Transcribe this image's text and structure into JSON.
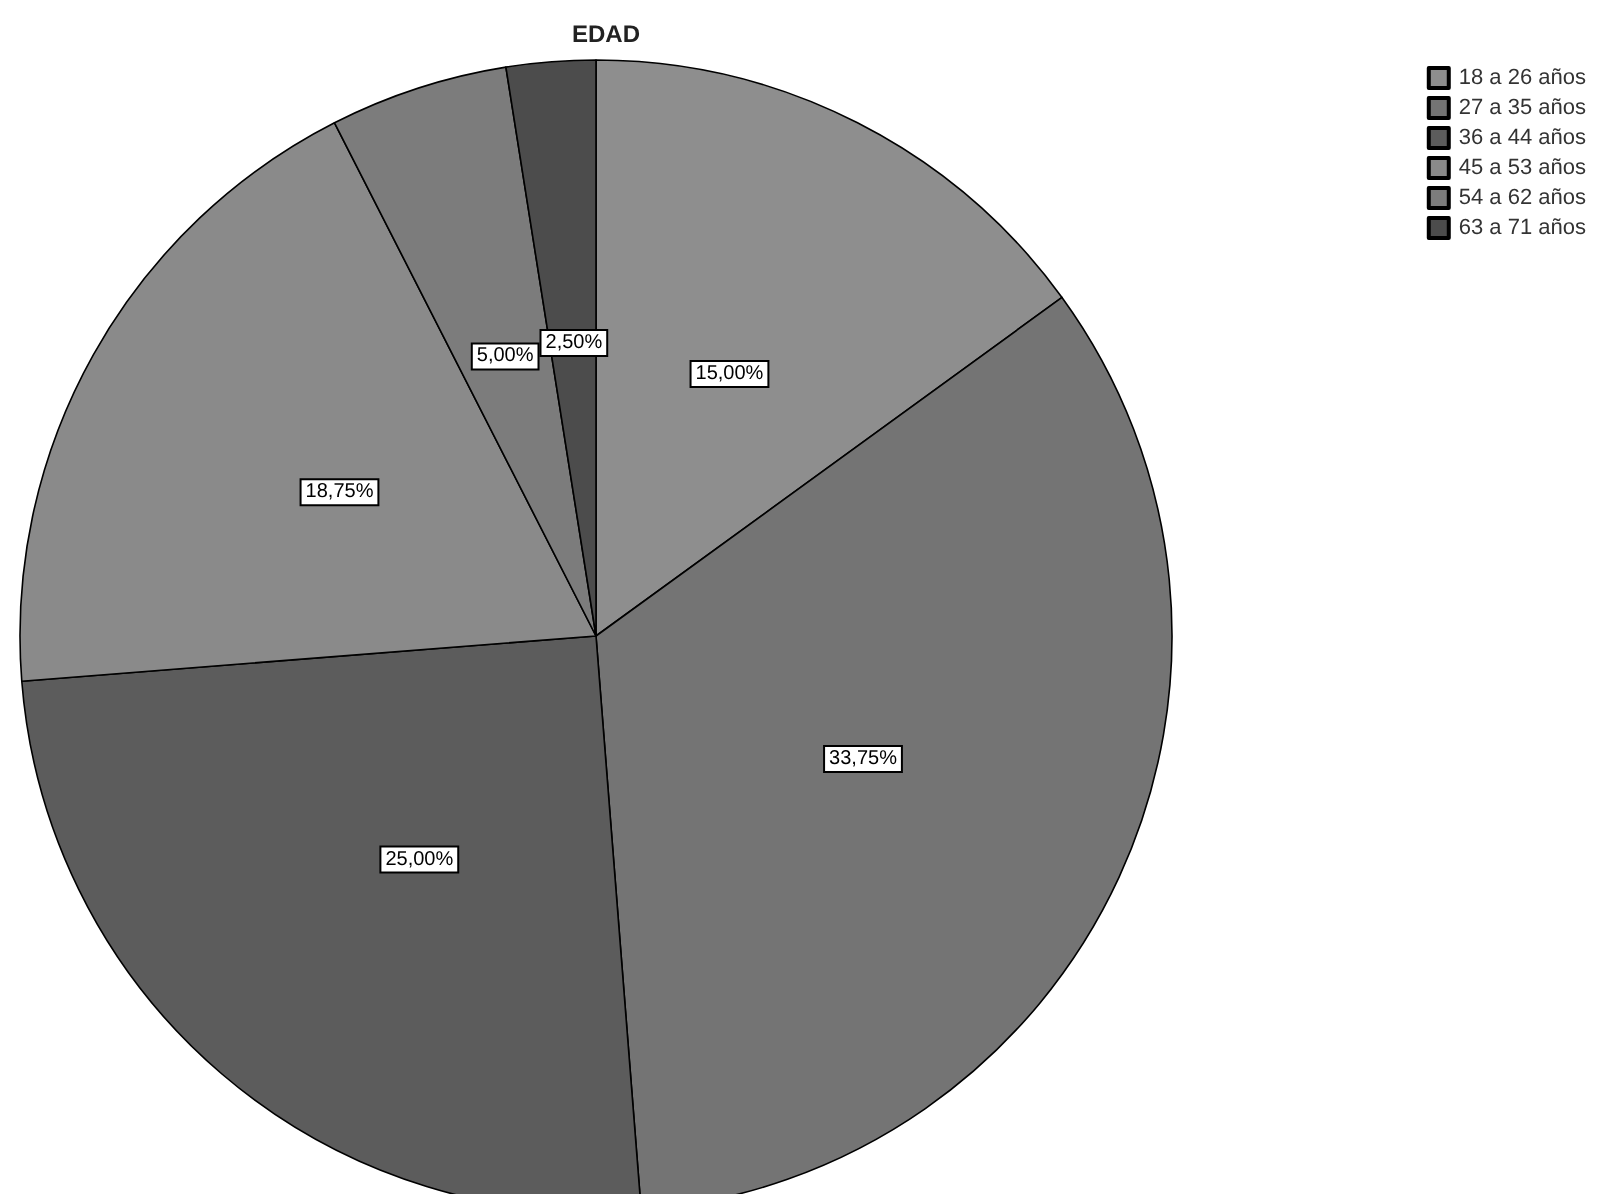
{
  "chart_data": {
    "type": "pie",
    "title": "EDAD",
    "categories": [
      "18 a 26 años",
      "27 a 35 años",
      "36 a 44 años",
      "45 a 53 años",
      "54 a 62 años",
      "63 a 71 años"
    ],
    "values": [
      15,
      33.75,
      25,
      18.75,
      5,
      2.5
    ],
    "colors": [
      "#8e8e8e",
      "#747474",
      "#5c5c5c",
      "#8a8a8a",
      "#7c7c7c",
      "#4c4c4c"
    ],
    "value_labels": [
      "15,00%",
      "33,75%",
      "25,00%",
      "18,75%",
      "5,00%",
      "2,50%"
    ],
    "legend": "top right"
  }
}
